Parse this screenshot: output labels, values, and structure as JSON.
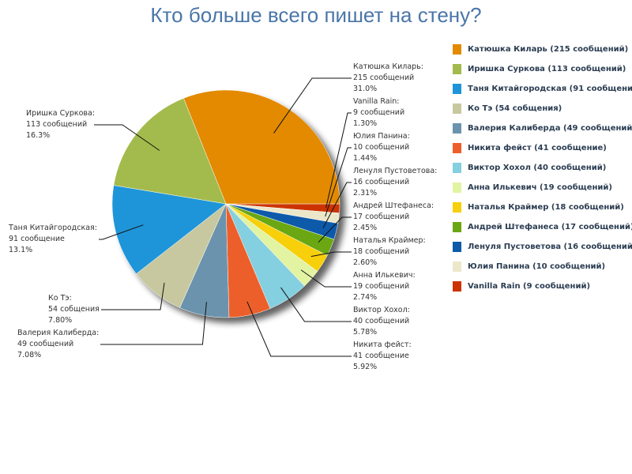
{
  "chart_data": {
    "type": "pie",
    "title": "Кто больше всего пишет на стену?",
    "slices": [
      {
        "name": "Катюшка Киларь",
        "value": 215,
        "count_label": "215 сообщений",
        "percent": "31.0%",
        "legend": "Катюшка Киларь (215 сообщений)",
        "color": "#e38a00"
      },
      {
        "name": "Иришка Суркова",
        "value": 113,
        "count_label": "113 сообщений",
        "percent": "16.3%",
        "legend": "Иришка Суркова (113 сообщений)",
        "color": "#a3bb4c"
      },
      {
        "name": "Таня Китайгородская",
        "value": 91,
        "count_label": "91 сообщение",
        "percent": "13.1%",
        "legend": "Таня Китайгородская (91 сообщение)",
        "color": "#1e95d9"
      },
      {
        "name": "Ко Тэ",
        "value": 54,
        "count_label": "54 собщения",
        "percent": "7.80%",
        "legend": "Ко Тэ (54 собщения)",
        "color": "#c8c8a0"
      },
      {
        "name": "Валерия Калиберда",
        "value": 49,
        "count_label": "49 сообщений",
        "percent": "7.08%",
        "legend": "Валерия Калиберда (49 сообщений)",
        "color": "#6b93ad"
      },
      {
        "name": "Никита фейст",
        "value": 41,
        "count_label": "41 сообщение",
        "percent": "5.92%",
        "legend": "Никита фейст (41 сообщение)",
        "color": "#ed5f2a"
      },
      {
        "name": "Виктор Хохол",
        "value": 40,
        "count_label": "40 сообщений",
        "percent": "5.78%",
        "legend": "Виктор Хохол (40 сообщений)",
        "color": "#84cfe0"
      },
      {
        "name": "Анна Илькевич",
        "value": 19,
        "count_label": "19 сообщений",
        "percent": "2.74%",
        "legend": "Анна Илькевич (19 сообщений)",
        "color": "#e2f3a2"
      },
      {
        "name": "Наталья Краймер",
        "value": 18,
        "count_label": "18 сообщений",
        "percent": "2.60%",
        "legend": "Наталья Краймер (18 сообщений)",
        "color": "#f7cf0a"
      },
      {
        "name": "Андрей Штефанеса",
        "value": 17,
        "count_label": "17 сообщений",
        "percent": "2.45%",
        "legend": "Андрей Штефанеса (17 сообщений)",
        "color": "#6aa713"
      },
      {
        "name": "Ленуля Пустоветова",
        "value": 16,
        "count_label": "16 сообщений",
        "percent": "2.31%",
        "legend": "Ленуля Пустоветова (16 сообщений)",
        "color": "#0d5aaa"
      },
      {
        "name": "Юлия Панина",
        "value": 10,
        "count_label": "10 сообщений",
        "percent": "1.44%",
        "legend": "Юлия Панина (10 сообщений)",
        "color": "#ece7c9"
      },
      {
        "name": "Vanilla Rain",
        "value": 9,
        "count_label": "9 сообщений",
        "percent": "1.30%",
        "legend": "Vanilla Rain (9 сообщений)",
        "color": "#cc3300"
      }
    ],
    "legend_position": "right"
  }
}
